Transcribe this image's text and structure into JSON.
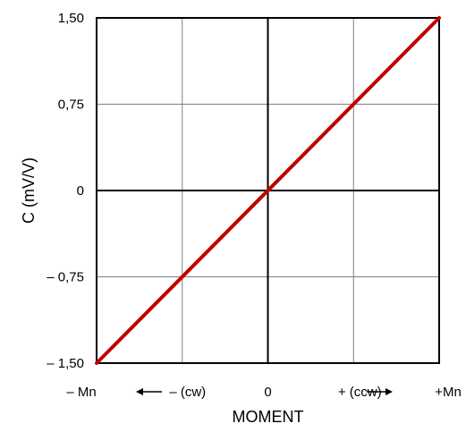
{
  "chart_data": {
    "type": "line",
    "title": "",
    "xlabel": "MOMENT",
    "ylabel": "C (mV/V)",
    "x": [
      -2,
      2
    ],
    "xlim": [
      -2,
      2
    ],
    "ylim": [
      -1.5,
      1.5
    ],
    "x_tick_values": [
      -2,
      -1,
      0,
      1,
      2
    ],
    "x_tick_labels": [
      "– Mn",
      "– (cw)",
      "0",
      "+ (ccw)",
      "+Mn"
    ],
    "y_tick_values": [
      1.5,
      0.75,
      0,
      -0.75,
      -1.5
    ],
    "y_tick_labels": [
      "1,50",
      "0,75",
      "0",
      "– 0,75",
      "– 1,50"
    ],
    "grid": true,
    "series": [
      {
        "x": [
          -2,
          2
        ],
        "values": [
          -1.5,
          1.5
        ],
        "color": "#c00000"
      }
    ],
    "annotations": [
      "left-arrow",
      "right-arrow"
    ],
    "colors": {
      "line": "#c00000",
      "frame": "#000000",
      "grid": "#808080"
    }
  }
}
